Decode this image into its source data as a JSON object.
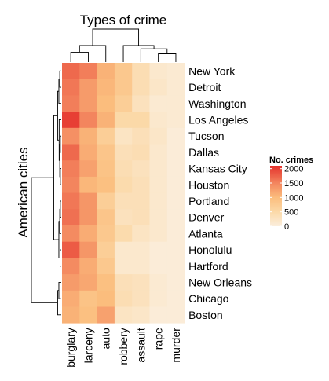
{
  "chart_data": {
    "type": "heatmap",
    "title": "Types of crime",
    "xlabel": "Types of crime",
    "ylabel": "American cities",
    "columns": [
      "burglary",
      "larceny",
      "auto",
      "robbery",
      "assault",
      "rape",
      "murder"
    ],
    "rows": [
      "New York",
      "Detroit",
      "Washington",
      "Los Angeles",
      "Tucson",
      "Dallas",
      "Kansas City",
      "Houston",
      "Portland",
      "Denver",
      "Atlanta",
      "Honolulu",
      "Hartford",
      "New Orleans",
      "Chicago",
      "Boston"
    ],
    "values": [
      [
        1700,
        1550,
        1100,
        800,
        400,
        150,
        100
      ],
      [
        1600,
        1300,
        1050,
        800,
        400,
        200,
        100
      ],
      [
        1550,
        1300,
        1000,
        700,
        300,
        100,
        100
      ],
      [
        2000,
        1500,
        1100,
        500,
        500,
        150,
        100
      ],
      [
        1400,
        1100,
        700,
        250,
        350,
        200,
        50
      ],
      [
        1700,
        1150,
        850,
        350,
        400,
        150,
        50
      ],
      [
        1550,
        1250,
        900,
        400,
        300,
        150,
        50
      ],
      [
        1500,
        1050,
        950,
        450,
        350,
        150,
        50
      ],
      [
        1600,
        1350,
        700,
        350,
        350,
        150,
        50
      ],
      [
        1650,
        1350,
        850,
        300,
        350,
        150,
        50
      ],
      [
        1450,
        1150,
        800,
        450,
        250,
        150,
        50
      ],
      [
        1800,
        1350,
        700,
        150,
        150,
        50,
        50
      ],
      [
        1450,
        1150,
        800,
        150,
        150,
        50,
        50
      ],
      [
        1300,
        1200,
        950,
        350,
        300,
        100,
        50
      ],
      [
        1150,
        900,
        1000,
        400,
        300,
        100,
        50
      ],
      [
        1100,
        950,
        1250,
        250,
        200,
        50,
        50
      ]
    ],
    "legend": {
      "title": "No. crimes",
      "ticks": [
        2000,
        1500,
        1000,
        500,
        0
      ],
      "range": [
        0,
        2100
      ],
      "position": "right"
    },
    "colors": {
      "low": "#fbeedd",
      "mid_low": "#fbd9a8",
      "mid": "#fbbd7d",
      "mid_high": "#f3855e",
      "high": "#e4312c"
    }
  }
}
